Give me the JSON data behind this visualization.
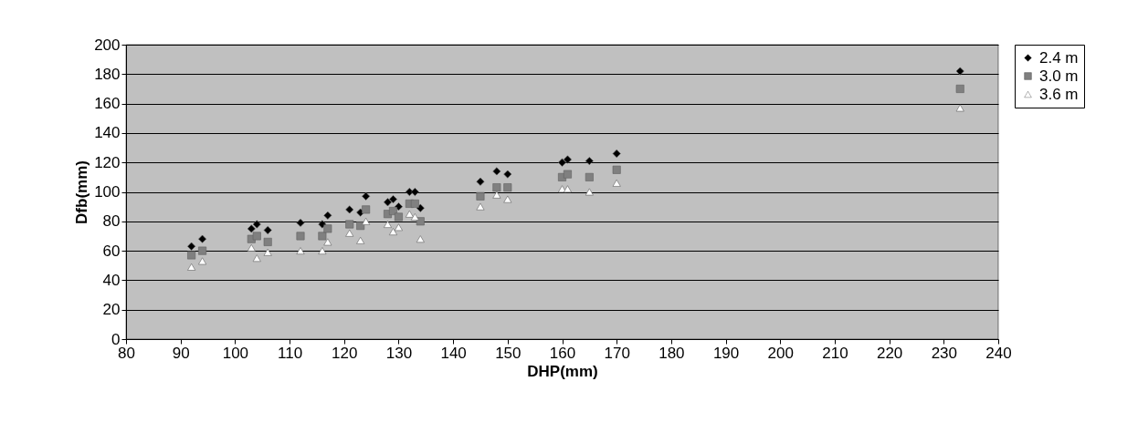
{
  "chart_data": {
    "type": "scatter",
    "xlabel": "DHP(mm)",
    "ylabel": "Dfb(mm)",
    "xlim": [
      80,
      240
    ],
    "xticks": [
      80,
      90,
      100,
      110,
      120,
      130,
      140,
      150,
      160,
      170,
      180,
      190,
      200,
      210,
      220,
      230,
      240
    ],
    "ylim": [
      0,
      200
    ],
    "yticks": [
      0,
      20,
      40,
      60,
      80,
      100,
      120,
      140,
      160,
      180,
      200
    ],
    "grid": "y",
    "legend": "right",
    "x": [
      92,
      94,
      103,
      104,
      106,
      112,
      116,
      117,
      121,
      123,
      124,
      128,
      129,
      130,
      132,
      133,
      134,
      145,
      148,
      150,
      160,
      161,
      165,
      170,
      233
    ],
    "series": [
      {
        "name": "2.4 m",
        "color": "#000000",
        "marker": "diamond",
        "values": [
          63,
          68,
          75,
          78,
          74,
          79,
          78,
          84,
          88,
          86,
          97,
          93,
          95,
          90,
          100,
          100,
          89,
          107,
          114,
          112,
          120,
          122,
          121,
          126,
          182
        ]
      },
      {
        "name": "3.0 m",
        "color": "#808080",
        "marker": "square",
        "values": [
          57,
          60,
          68,
          70,
          66,
          70,
          70,
          75,
          78,
          77,
          88,
          85,
          87,
          83,
          92,
          92,
          80,
          97,
          103,
          103,
          110,
          112,
          110,
          115,
          170
        ]
      },
      {
        "name": "3.6 m",
        "color": "#ffffff",
        "marker": "triangle",
        "values": [
          49,
          53,
          62,
          55,
          59,
          60,
          60,
          66,
          72,
          67,
          80,
          78,
          73,
          76,
          85,
          83,
          68,
          90,
          98,
          95,
          102,
          102,
          100,
          106,
          157
        ]
      }
    ]
  }
}
